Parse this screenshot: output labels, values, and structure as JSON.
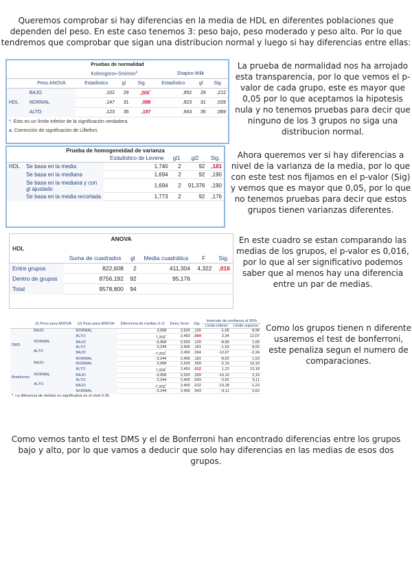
{
  "intro": "Queremos comprobar si hay diferencias en la media de HDL en diferentes poblaciones que dependen del peso. En este caso tenemos 3: peso bajo, peso moderado y peso alto. Por lo que tendremos que comprobar que sigan una distribucion normal y luego si hay diferencias entre ellas:",
  "normality": {
    "title": "Pruebas de normalidad",
    "groups": [
      "Kolmogorov-Smirnov",
      "Shapiro-Wilk"
    ],
    "group_note": "a",
    "columns": [
      "Peso ANOVA",
      "Estadístico",
      "gl",
      "Sig.",
      "Estadístico",
      "gl",
      "Sig."
    ],
    "variable": "HDL",
    "rows": [
      {
        "group": "BAJO",
        "cells": [
          ",102",
          "29",
          ",200*",
          ",952",
          "29",
          ",212"
        ]
      },
      {
        "group": "NORMAL",
        "cells": [
          ",147",
          "31",
          ",088",
          ",923",
          "31",
          ",028"
        ]
      },
      {
        "group": "ALTO",
        "cells": [
          ",123",
          "35",
          ",197",
          ",943",
          "35",
          ",069"
        ]
      }
    ],
    "footnotes": [
      "*. Esto es un límite inferior de la significación verdadera.",
      "a. Corrección de significación de Lilliefors"
    ]
  },
  "normality_text": "La prueba de normalidad nos ha arrojado esta transparencia, por lo que vemos el p-valor de cada grupo, este es mayor que 0,05 por lo que aceptamos la hipotesis nula y no tenemos pruebas para decir que ninguno de los 3 grupos no siga una distribucion normal.",
  "levene": {
    "title": "Prueba de homogeneidad de varianza",
    "columns": [
      "Estadístico de Levene",
      "gl1",
      "gl2",
      "Sig."
    ],
    "variable": "HDL",
    "rows": [
      {
        "label": "Se basa en la media",
        "cells": [
          "1,740",
          "2",
          "92",
          ",181"
        ]
      },
      {
        "label": "Se basa en la mediana",
        "cells": [
          "1,694",
          "2",
          "92",
          ",190"
        ]
      },
      {
        "label": "Se basa en la mediana y con gl ajustado",
        "cells": [
          "1,694",
          "2",
          "91,376",
          ",190"
        ]
      },
      {
        "label": "Se basa en la media recortada",
        "cells": [
          "1,773",
          "2",
          "92",
          ",176"
        ]
      }
    ]
  },
  "levene_text": "Ahora queremos ver si hay diferencias a nivel de la varianza de la media, por lo que con este test nos fijamos en el p-valor (Sig) y vemos que es mayor que 0,05, por lo que no tenemos pruebas para decir que estos grupos tienen varianzas diferentes.",
  "anova": {
    "title": "ANOVA",
    "variable": "HDL",
    "columns": [
      "Suma de cuadrados",
      "gl",
      "Media cuadrática",
      "F",
      "Sig."
    ],
    "rows": [
      {
        "label": "Entre grupos",
        "cells": [
          "822,608",
          "2",
          "411,304",
          "4,322",
          ",016"
        ]
      },
      {
        "label": "Dentro de grupos",
        "cells": [
          "8756,192",
          "92",
          "95,176"
        ]
      },
      {
        "label": "Total",
        "cells": [
          "9578,800",
          "94"
        ]
      }
    ]
  },
  "anova_text": "En este cuadro se estan comparando las medias de los grupos, el p-valor es 0,016, por lo que al ser significativo podemos saber que al menos hay una diferencia entre un par de medias.",
  "comparisons": {
    "columns": [
      "(I) Peso para ANOVA",
      "(J) Peso para ANOVA",
      "Diferencia de medias (I-J)",
      "Desv. Error",
      "Sig."
    ],
    "interval": "Intervalo de confianza al 95%",
    "interval_columns": [
      "Límite inferior",
      "Límite superior"
    ],
    "tests": [
      {
        "name": "DMS",
        "groups": [
          {
            "i": "BAJO",
            "rows": [
              {
                "j": "NORMAL",
                "cells": [
                  "3,958",
                  "2,520",
                  ",120",
                  "-1,05",
                  "8,96"
                ]
              },
              {
                "j": "ALTO",
                "cells": [
                  "7,202*",
                  "2,450",
                  ",004",
                  "2,34",
                  "12,07"
                ]
              }
            ]
          },
          {
            "i": "NORMAL",
            "rows": [
              {
                "j": "BAJO",
                "cells": [
                  "-3,958",
                  "2,520",
                  ",120",
                  "-8,96",
                  "1,05"
                ]
              },
              {
                "j": "ALTO",
                "cells": [
                  "3,244",
                  "2,406",
                  ",181",
                  "-1,53",
                  "8,02"
                ]
              }
            ]
          },
          {
            "i": "ALTO",
            "rows": [
              {
                "j": "BAJO",
                "cells": [
                  "-7,202*",
                  "2,450",
                  ",004",
                  "-12,07",
                  "-2,34"
                ]
              },
              {
                "j": "NORMAL",
                "cells": [
                  "-3,244",
                  "2,406",
                  ",181",
                  "-8,02",
                  "1,53"
                ]
              }
            ]
          }
        ]
      },
      {
        "name": "Bonferroni",
        "groups": [
          {
            "i": "BAJO",
            "rows": [
              {
                "j": "NORMAL",
                "cells": [
                  "3,958",
                  "2,520",
                  ",359",
                  "-2,19",
                  "10,10"
                ]
              },
              {
                "j": "ALTO",
                "cells": [
                  "7,202*",
                  "2,450",
                  ",012",
                  "1,23",
                  "13,18"
                ]
              }
            ]
          },
          {
            "i": "NORMAL",
            "rows": [
              {
                "j": "BAJO",
                "cells": [
                  "-3,958",
                  "2,520",
                  ",359",
                  "-10,10",
                  "2,19"
                ]
              },
              {
                "j": "ALTO",
                "cells": [
                  "3,244",
                  "2,406",
                  ",543",
                  "-2,62",
                  "9,11"
                ]
              }
            ]
          },
          {
            "i": "ALTO",
            "rows": [
              {
                "j": "BAJO",
                "cells": [
                  "-7,202*",
                  "2,450",
                  ",012",
                  "-13,18",
                  "-1,23"
                ]
              },
              {
                "j": "NORMAL",
                "cells": [
                  "-3,244",
                  "2,406",
                  ",543",
                  "-9,11",
                  "2,62"
                ]
              }
            ]
          }
        ]
      }
    ],
    "footnote": "*. La diferencia de medias es significativa en el nivel 0.05."
  },
  "comparisons_text": "Como los grupos tienen n diferente usaremos el test de bonferroni, este penaliza segun el numero de comparaciones.",
  "conclusion": "Como vemos tanto el test DMS y el de Bonferroni han encontrado diferencias entre los grupos bajo y alto, por lo que vamos a deducir que solo hay diferencias en las medias de esos dos grupos."
}
